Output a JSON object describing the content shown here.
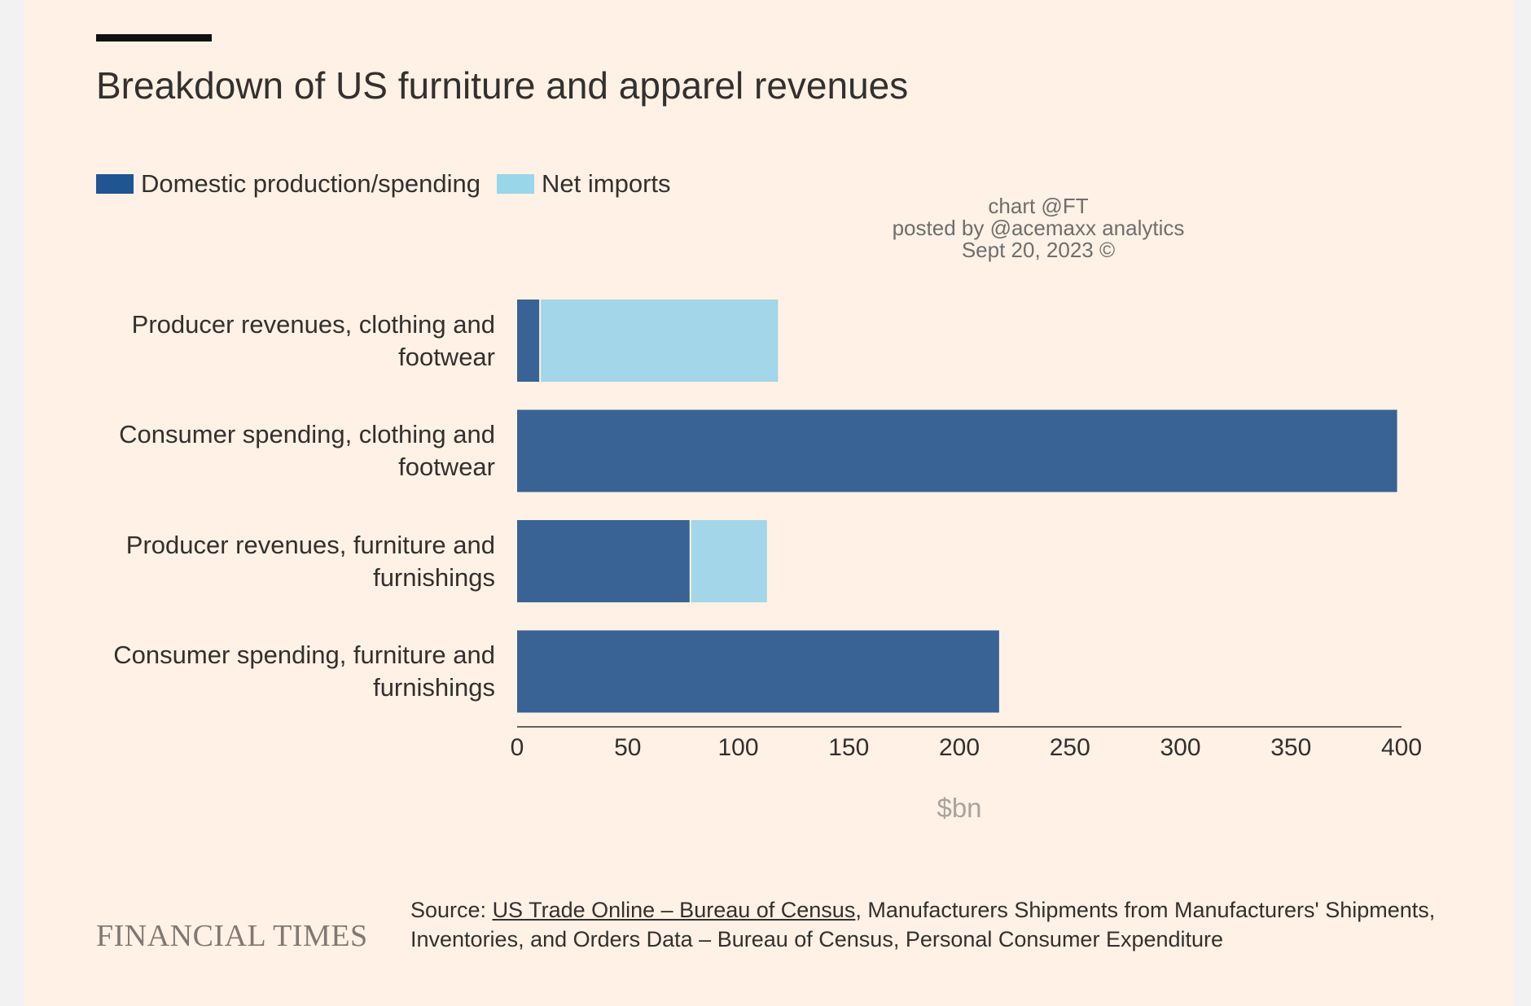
{
  "header": {
    "title": "Breakdown of US furniture and apparel revenues"
  },
  "legend": {
    "items": [
      {
        "label": "Domestic production/spending",
        "color": "#1f5591"
      },
      {
        "label": "Net imports",
        "color": "#99d6ea"
      }
    ]
  },
  "watermark": {
    "line1": "chart @FT",
    "line2": "posted by @acemaxx analytics",
    "line3": "Sept 20, 2023 ©"
  },
  "footer": {
    "logo": "FINANCIAL TIMES",
    "source_prefix": "Source: ",
    "source_link": "US Trade Online – Bureau of Census",
    "source_rest": ", Manufacturers Shipments from Manufacturers' Shipments, Inventories, and Orders Data – Bureau of Census, Personal Consumer Expenditure"
  },
  "chart_data": {
    "type": "bar",
    "orientation": "horizontal",
    "stacked": true,
    "categories": [
      [
        "Producer revenues, clothing and",
        "footwear"
      ],
      [
        "Consumer spending, clothing and",
        "footwear"
      ],
      [
        "Producer revenues, furniture and",
        "furnishings"
      ],
      [
        "Consumer spending, furniture and",
        "furnishings"
      ]
    ],
    "series": [
      {
        "name": "Domestic production/spending",
        "color": "#386394",
        "values": [
          10,
          398,
          78,
          218
        ]
      },
      {
        "name": "Net imports",
        "color": "#a2d6e8",
        "values": [
          108,
          0,
          35,
          0
        ]
      }
    ],
    "xlabel": "$bn",
    "xlim": [
      0,
      400
    ],
    "xticks": [
      0,
      50,
      100,
      150,
      200,
      250,
      300,
      350,
      400
    ],
    "grid": false,
    "legend_position": "top-left"
  }
}
